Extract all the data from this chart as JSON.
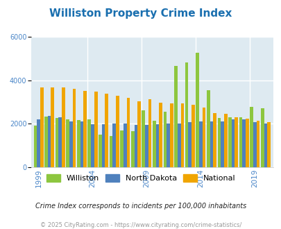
{
  "title": "Williston Property Crime Index",
  "title_color": "#1a6faf",
  "subtitle": "Crime Index corresponds to incidents per 100,000 inhabitants",
  "footer": "© 2025 CityRating.com - https://www.cityrating.com/crime-statistics/",
  "years": [
    1999,
    2000,
    2001,
    2002,
    2003,
    2004,
    2005,
    2006,
    2007,
    2008,
    2009,
    2010,
    2011,
    2012,
    2013,
    2014,
    2015,
    2016,
    2017,
    2018,
    2019,
    2020
  ],
  "williston": [
    1900,
    2330,
    2250,
    2200,
    2150,
    2200,
    1500,
    1430,
    1700,
    1650,
    2600,
    2120,
    2550,
    4650,
    4820,
    5250,
    3550,
    2250,
    2300,
    2300,
    2780,
    2720
  ],
  "north_dakota": [
    2200,
    2350,
    2300,
    2100,
    2100,
    1980,
    1980,
    2020,
    2020,
    1930,
    1940,
    1980,
    2010,
    2020,
    2070,
    2100,
    2100,
    2100,
    2200,
    2200,
    2060,
    2010
  ],
  "national": [
    3650,
    3650,
    3650,
    3600,
    3520,
    3470,
    3380,
    3280,
    3200,
    3030,
    3130,
    2970,
    2940,
    2920,
    2870,
    2750,
    2490,
    2440,
    2290,
    2230,
    2120,
    2080
  ],
  "bar_colors": {
    "williston": "#8dc63f",
    "north_dakota": "#4f81bd",
    "national": "#f0a500"
  },
  "bg_color": "#deeaf1",
  "ylim": [
    0,
    6000
  ],
  "yticks": [
    0,
    2000,
    4000,
    6000
  ],
  "legend_labels": [
    "Williston",
    "North Dakota",
    "National"
  ],
  "grid_color": "#ffffff",
  "axis_label_color": "#4a86c8",
  "tick_years": [
    1999,
    2004,
    2009,
    2014,
    2019
  ],
  "figsize": [
    4.06,
    3.3
  ],
  "dpi": 100
}
